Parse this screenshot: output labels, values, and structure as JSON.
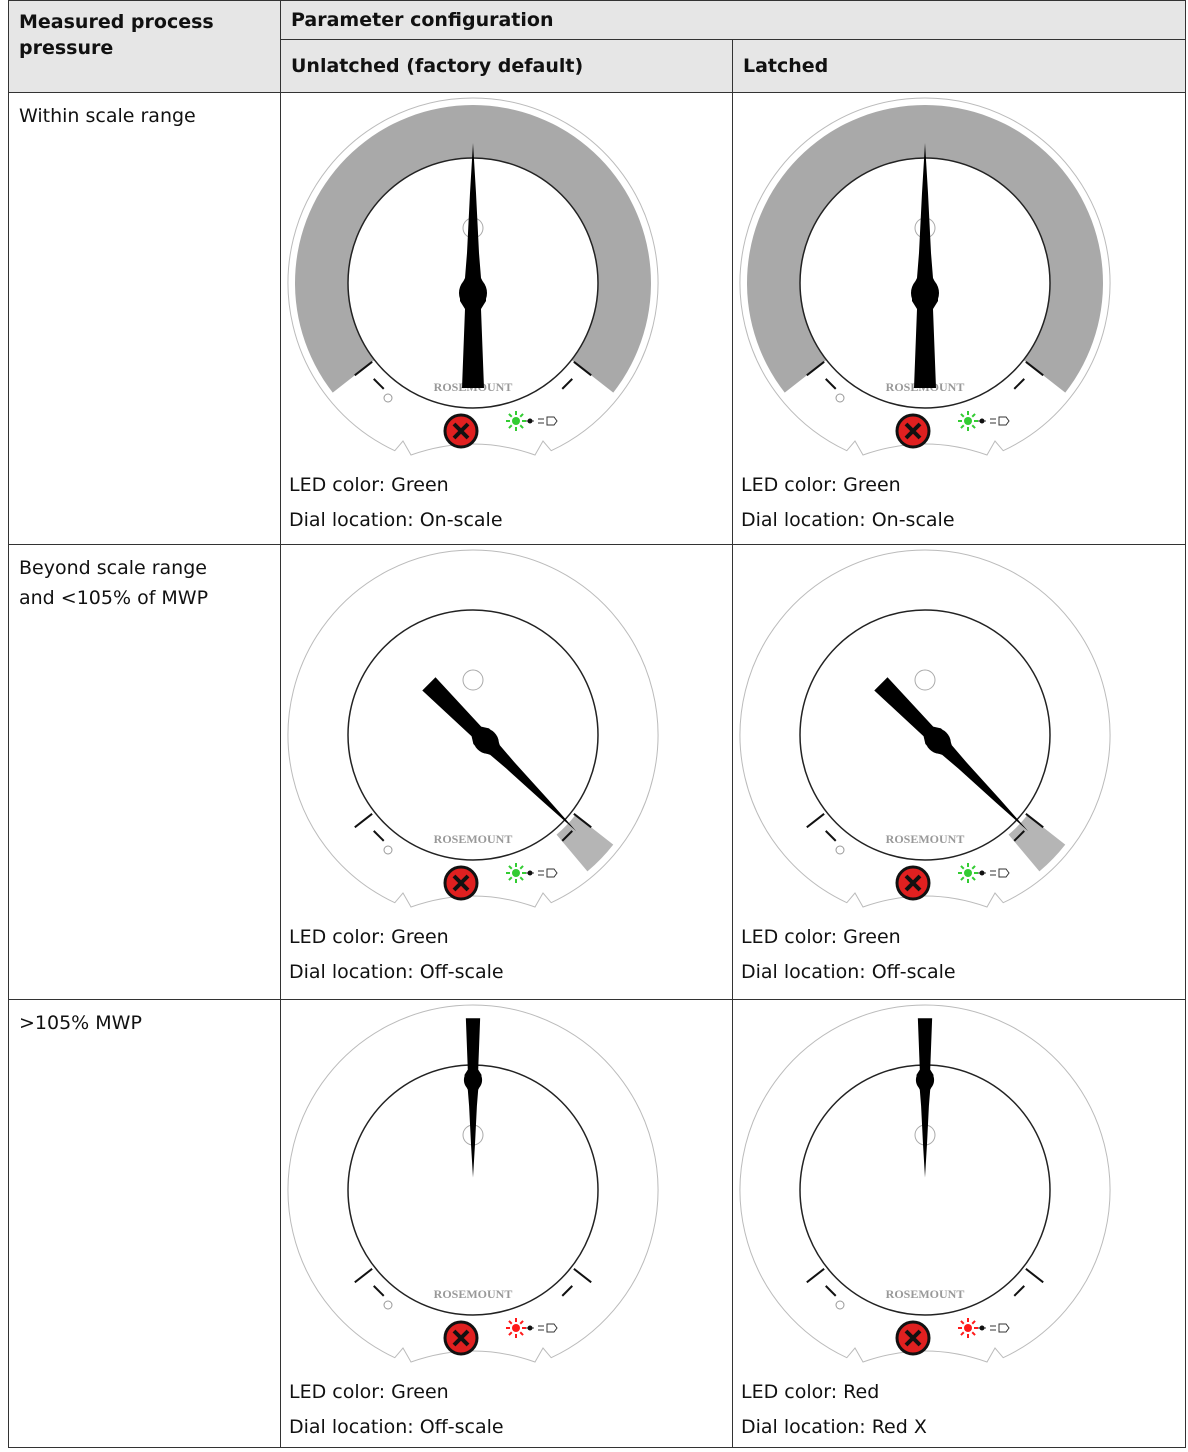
{
  "header": {
    "col1": "Measured process pressure",
    "group": "Parameter configuration",
    "col2": "Unlatched (factory default)",
    "col3": "Latched"
  },
  "gauge_brand": "ROSEMOUNT",
  "rows": [
    {
      "label": "Within scale range",
      "cells": [
        {
          "led": "LED color: Green",
          "dial": "Dial location: On-scale"
        },
        {
          "led": "LED color: Green",
          "dial": "Dial location: On-scale"
        }
      ]
    },
    {
      "label": "Beyond scale range and <105% of MWP",
      "cells": [
        {
          "led": "LED color: Green",
          "dial": "Dial location: Off-scale"
        },
        {
          "led": "LED color: Green",
          "dial": "Dial location: Off-scale"
        }
      ]
    },
    {
      "label": ">105% MWP",
      "cells": [
        {
          "led": "LED color: Green",
          "dial": "Dial location: Off-scale"
        },
        {
          "led": "LED color: Red",
          "dial": "Dial location: Red X"
        }
      ]
    }
  ]
}
